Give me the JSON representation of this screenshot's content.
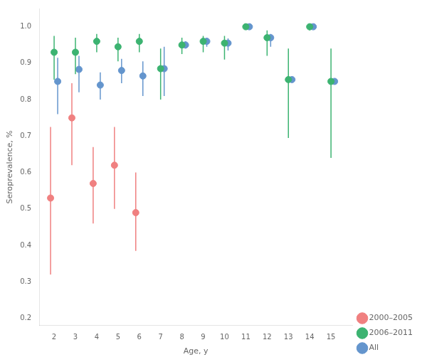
{
  "chart_data": {
    "type": "scatter",
    "xlabel": "Age, y",
    "ylabel": "Seroprevalence, %",
    "xlim": [
      1.3,
      16.0
    ],
    "ylim": [
      0.18,
      1.05
    ],
    "xticks": [
      2,
      3,
      4,
      5,
      6,
      7,
      8,
      9,
      10,
      11,
      12,
      13,
      14,
      15
    ],
    "yticks": [
      0.2,
      0.3,
      0.4,
      0.5,
      0.6,
      0.7,
      0.8,
      0.9,
      {
        "value": 1.0,
        "label": "1.0"
      }
    ],
    "grid": false,
    "legend": "lower right",
    "marker": "circle",
    "series": [
      {
        "name": "2000–2005",
        "color": "#f08080",
        "x": [
          2,
          3,
          4,
          5,
          6
        ],
        "values": [
          0.53,
          0.75,
          0.57,
          0.62,
          0.49
        ],
        "lo": [
          0.32,
          0.62,
          0.46,
          0.5,
          0.385
        ],
        "hi": [
          0.725,
          0.845,
          0.67,
          0.725,
          0.6
        ]
      },
      {
        "name": "2006–2011",
        "color": "#3cb371",
        "x": [
          2,
          3,
          4,
          5,
          6,
          7,
          8,
          9,
          10,
          11,
          12,
          13,
          14,
          15
        ],
        "values": [
          0.93,
          0.93,
          0.96,
          0.945,
          0.96,
          0.885,
          0.95,
          0.96,
          0.955,
          1.0,
          0.97,
          0.855,
          1.0,
          0.85
        ],
        "lo": [
          0.855,
          0.87,
          0.93,
          0.905,
          0.93,
          0.8,
          0.925,
          0.93,
          0.91,
          1.0,
          0.92,
          0.695,
          0.99,
          0.64
        ],
        "hi": [
          0.975,
          0.97,
          0.98,
          0.97,
          0.98,
          0.94,
          0.97,
          0.975,
          0.975,
          1.0,
          0.99,
          0.94,
          1.0,
          0.94
        ]
      },
      {
        "name": "All",
        "color": "#6495cd",
        "x": [
          2,
          3,
          4,
          5,
          6,
          7,
          8,
          9,
          10,
          11,
          12,
          13,
          14,
          15
        ],
        "values": [
          0.85,
          0.883,
          0.84,
          0.88,
          0.865,
          0.885,
          0.95,
          0.96,
          0.955,
          1.0,
          0.97,
          0.855,
          1.0,
          0.85
        ],
        "lo": [
          0.76,
          0.82,
          0.8,
          0.845,
          0.81,
          0.81,
          0.94,
          0.945,
          0.935,
          0.995,
          0.945,
          0.85,
          0.995,
          0.845
        ],
        "hi": [
          0.915,
          0.92,
          0.875,
          0.912,
          0.905,
          0.945,
          0.96,
          0.97,
          0.968,
          1.0,
          0.98,
          0.86,
          1.0,
          0.855
        ]
      }
    ]
  }
}
